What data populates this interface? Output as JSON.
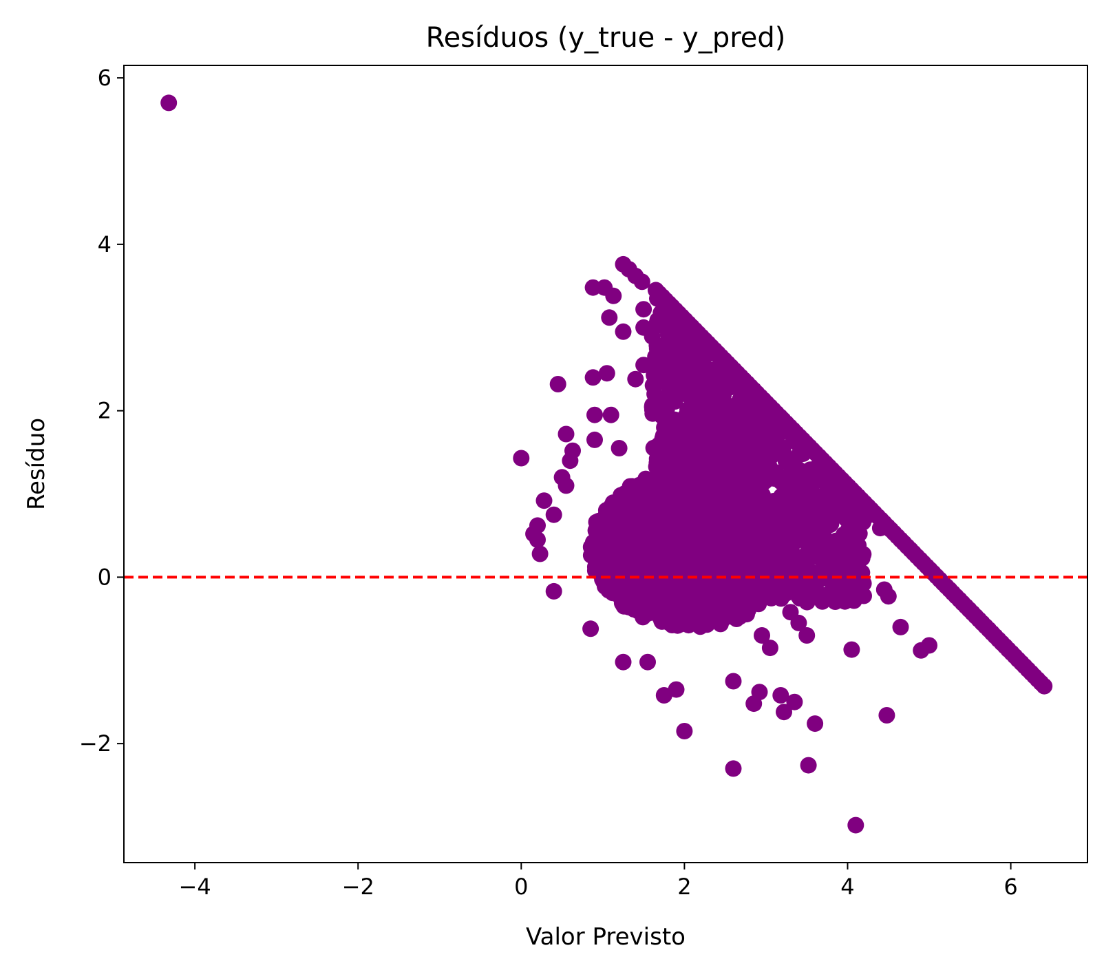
{
  "chart_data": {
    "type": "scatter",
    "title": "Resíduos (y_true - y_pred)",
    "xlabel": "Valor Previsto",
    "ylabel": "Resíduo",
    "xlim": [
      -4.87,
      6.94
    ],
    "ylim": [
      -3.43,
      6.15
    ],
    "x_ticks": [
      -4,
      -2,
      0,
      2,
      4,
      6
    ],
    "x_tick_labels": [
      "−4",
      "−2",
      "0",
      "2",
      "4",
      "6"
    ],
    "y_ticks": [
      -2,
      0,
      2,
      4,
      6
    ],
    "y_tick_labels": [
      "−2",
      "0",
      "2",
      "4",
      "6"
    ],
    "grid": false,
    "marker_color": "#800080",
    "reference_line": {
      "y": 0,
      "color": "#ff0000",
      "style": "dashed"
    },
    "series": [
      {
        "points": [
          [
            -4.32,
            5.7
          ],
          [
            0.0,
            1.43
          ],
          [
            0.45,
            2.32
          ],
          [
            0.28,
            0.92
          ],
          [
            0.15,
            0.52
          ],
          [
            0.2,
            0.62
          ],
          [
            0.23,
            0.28
          ],
          [
            0.55,
            1.72
          ],
          [
            0.63,
            1.52
          ],
          [
            0.88,
            3.48
          ],
          [
            1.02,
            3.48
          ],
          [
            1.13,
            3.38
          ],
          [
            1.08,
            3.12
          ],
          [
            1.25,
            3.76
          ],
          [
            1.32,
            3.7
          ],
          [
            1.4,
            3.62
          ],
          [
            1.48,
            3.55
          ],
          [
            1.5,
            3.22
          ],
          [
            1.5,
            3.0
          ],
          [
            1.25,
            2.95
          ],
          [
            1.68,
            3.35
          ],
          [
            1.75,
            2.65
          ],
          [
            1.5,
            2.55
          ],
          [
            0.88,
            2.4
          ],
          [
            1.05,
            2.45
          ],
          [
            1.4,
            2.38
          ],
          [
            1.85,
            2.4
          ],
          [
            0.9,
            1.95
          ],
          [
            1.1,
            1.95
          ],
          [
            0.9,
            1.65
          ],
          [
            1.2,
            1.55
          ],
          [
            0.6,
            1.4
          ],
          [
            0.5,
            1.2
          ],
          [
            0.55,
            1.1
          ],
          [
            0.4,
            0.75
          ],
          [
            0.2,
            0.45
          ],
          [
            0.4,
            -0.17
          ],
          [
            0.85,
            -0.62
          ],
          [
            1.25,
            -1.02
          ],
          [
            1.55,
            -1.02
          ],
          [
            1.75,
            -1.42
          ],
          [
            1.9,
            -1.35
          ],
          [
            2.0,
            -1.85
          ],
          [
            2.6,
            -1.25
          ],
          [
            2.6,
            -2.3
          ],
          [
            2.85,
            -1.52
          ],
          [
            2.92,
            -1.38
          ],
          [
            3.18,
            -1.42
          ],
          [
            3.22,
            -1.62
          ],
          [
            3.35,
            -1.5
          ],
          [
            3.52,
            -2.26
          ],
          [
            3.6,
            -1.76
          ],
          [
            4.1,
            -2.98
          ],
          [
            4.48,
            -1.66
          ],
          [
            4.05,
            -0.87
          ],
          [
            4.65,
            -0.6
          ],
          [
            4.9,
            -0.88
          ],
          [
            5.0,
            -0.82
          ],
          [
            4.45,
            -0.15
          ],
          [
            4.5,
            -0.23
          ],
          [
            4.22,
            0.72
          ],
          [
            4.4,
            0.59
          ],
          [
            4.05,
            0.48
          ],
          [
            4.05,
            0.23
          ],
          [
            3.85,
            0.07
          ],
          [
            3.5,
            -0.7
          ],
          [
            3.4,
            -0.55
          ],
          [
            3.3,
            -0.42
          ],
          [
            3.05,
            -0.85
          ],
          [
            2.95,
            -0.7
          ]
        ]
      }
    ],
    "dense_cluster": {
      "core_ellipse": {
        "cx": 2.1,
        "cy": 0.35,
        "rx": 1.25,
        "ry": 0.95
      },
      "upper_lobe": {
        "cx": 2.4,
        "cy": 1.4,
        "rx": 0.75,
        "ry": 0.7
      },
      "boundary_line": {
        "x_start": 1.65,
        "x_end": 6.42,
        "relation": "y = 5.1 - x"
      }
    }
  }
}
